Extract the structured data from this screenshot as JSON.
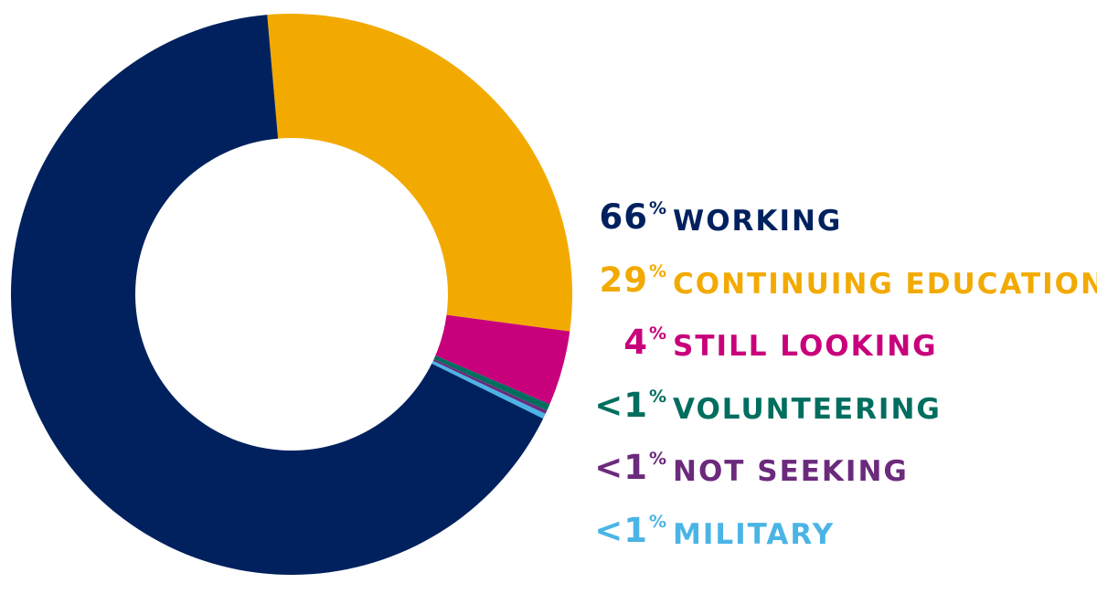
{
  "chart_data": {
    "type": "pie",
    "subtype": "donut",
    "title": "",
    "legend_position": "right",
    "segments": [
      {
        "name": "WORKING",
        "label": "66",
        "value": 66.3,
        "color": "#00215e"
      },
      {
        "name": "CONTINUING EDUCATION",
        "label": "29",
        "value": 28.5,
        "color": "#f2aa00"
      },
      {
        "name": "STILL LOOKING",
        "label": "4",
        "value": 4.3,
        "color": "#c8007b"
      },
      {
        "name": "VOLUNTEERING",
        "label": "<1",
        "value": 0.4,
        "color": "#006e5f"
      },
      {
        "name": "NOT SEEKING",
        "label": "<1",
        "value": 0.2,
        "color": "#6b2a7c"
      },
      {
        "name": "MILITARY",
        "label": "<1",
        "value": 0.3,
        "color": "#4bb4e6"
      }
    ],
    "percent_symbol": "%"
  }
}
